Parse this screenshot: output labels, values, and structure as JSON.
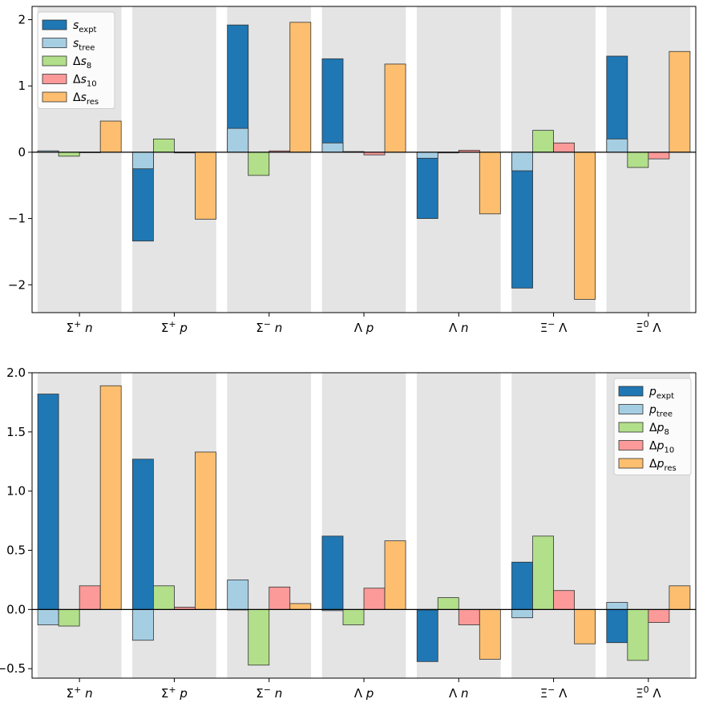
{
  "chart_data": [
    {
      "type": "bar",
      "title": "",
      "xlabel": "",
      "ylabel": "",
      "ylim": [
        -2.42,
        2.2
      ],
      "yticks": [
        -2,
        -1,
        0,
        1,
        2
      ],
      "ytick_labels": [
        "−2",
        "−1",
        "0",
        "1",
        "2"
      ],
      "grid": false,
      "shaded_category_bands": true,
      "legend_position": "top-left",
      "categories": [
        {
          "base": "Σ",
          "sup": "+",
          "tail": "n"
        },
        {
          "base": "Σ",
          "sup": "+",
          "tail": "p"
        },
        {
          "base": "Σ",
          "sup": "−",
          "tail": "n"
        },
        {
          "base": "Λ",
          "sup": "",
          "tail": "p"
        },
        {
          "base": "Λ",
          "sup": "",
          "tail": "n"
        },
        {
          "base": "Ξ",
          "sup": "−",
          "tail": "Λ"
        },
        {
          "base": "Ξ",
          "sup": "0",
          "tail": "Λ"
        }
      ],
      "series": [
        {
          "name": {
            "pre": "",
            "sym": "s",
            "sub": "expt"
          },
          "color": "#1f77b4",
          "slot": 0,
          "values": [
            0.02,
            -1.34,
            1.92,
            1.41,
            -1.0,
            -2.05,
            1.45
          ]
        },
        {
          "name": {
            "pre": "",
            "sym": "s",
            "sub": "tree"
          },
          "color": "#a6cee3",
          "slot": 0,
          "values": [
            0.02,
            -0.25,
            0.36,
            0.14,
            -0.09,
            -0.28,
            0.2
          ]
        },
        {
          "name": {
            "pre": "Δ",
            "sym": "s",
            "sub": "8"
          },
          "color": "#b2df8a",
          "slot": 1,
          "values": [
            -0.06,
            0.2,
            -0.35,
            0.01,
            -0.01,
            0.33,
            -0.23
          ]
        },
        {
          "name": {
            "pre": "Δ",
            "sym": "s",
            "sub": "10"
          },
          "color": "#fb9a99",
          "slot": 2,
          "values": [
            0.0,
            -0.01,
            0.02,
            -0.04,
            0.03,
            0.14,
            -0.1
          ]
        },
        {
          "name": {
            "pre": "Δ",
            "sym": "s",
            "sub": "res"
          },
          "color": "#fdbf6f",
          "slot": 3,
          "values": [
            0.47,
            -1.01,
            1.96,
            1.33,
            -0.93,
            -2.22,
            1.52
          ]
        }
      ]
    },
    {
      "type": "bar",
      "title": "",
      "xlabel": "",
      "ylabel": "",
      "ylim": [
        -0.58,
        2.0
      ],
      "yticks": [
        -0.5,
        0.0,
        0.5,
        1.0,
        1.5,
        2.0
      ],
      "ytick_labels": [
        "−0.5",
        "0.0",
        "0.5",
        "1.0",
        "1.5",
        "2.0"
      ],
      "grid": false,
      "shaded_category_bands": true,
      "legend_position": "top-right",
      "categories": [
        {
          "base": "Σ",
          "sup": "+",
          "tail": "n"
        },
        {
          "base": "Σ",
          "sup": "+",
          "tail": "p"
        },
        {
          "base": "Σ",
          "sup": "−",
          "tail": "n"
        },
        {
          "base": "Λ",
          "sup": "",
          "tail": "p"
        },
        {
          "base": "Λ",
          "sup": "",
          "tail": "n"
        },
        {
          "base": "Ξ",
          "sup": "−",
          "tail": "Λ"
        },
        {
          "base": "Ξ",
          "sup": "0",
          "tail": "Λ"
        }
      ],
      "series": [
        {
          "name": {
            "pre": "",
            "sym": "p",
            "sub": "expt"
          },
          "color": "#1f77b4",
          "slot": 0,
          "values": [
            1.82,
            1.27,
            0.0,
            0.62,
            -0.44,
            0.4,
            -0.28
          ]
        },
        {
          "name": {
            "pre": "",
            "sym": "p",
            "sub": "tree"
          },
          "color": "#a6cee3",
          "slot": 0,
          "values": [
            -0.13,
            -0.26,
            0.25,
            -0.01,
            0.0,
            -0.07,
            0.06
          ]
        },
        {
          "name": {
            "pre": "Δ",
            "sym": "p",
            "sub": "8"
          },
          "color": "#b2df8a",
          "slot": 1,
          "values": [
            -0.14,
            0.2,
            -0.47,
            -0.13,
            0.1,
            0.62,
            -0.43
          ]
        },
        {
          "name": {
            "pre": "Δ",
            "sym": "p",
            "sub": "10"
          },
          "color": "#fb9a99",
          "slot": 2,
          "values": [
            0.2,
            0.02,
            0.19,
            0.18,
            -0.13,
            0.16,
            -0.11
          ]
        },
        {
          "name": {
            "pre": "Δ",
            "sym": "p",
            "sub": "res"
          },
          "color": "#fdbf6f",
          "slot": 3,
          "values": [
            1.89,
            1.33,
            0.05,
            0.58,
            -0.42,
            -0.29,
            0.2
          ]
        }
      ]
    }
  ]
}
